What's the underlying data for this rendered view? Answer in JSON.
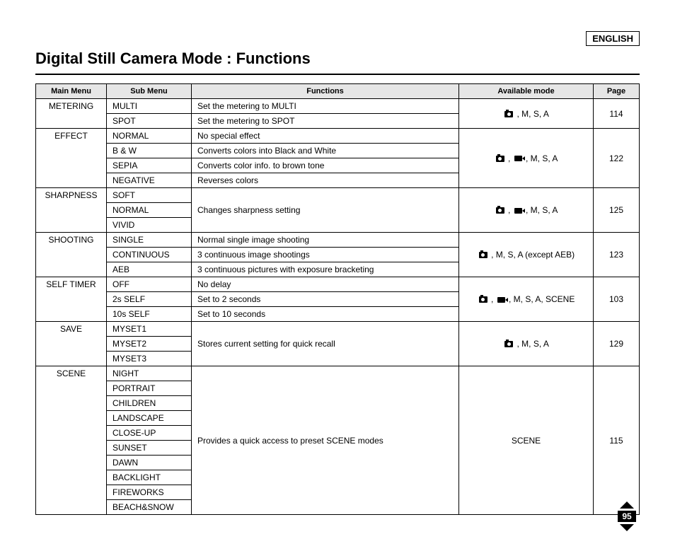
{
  "language_label": "ENGLISH",
  "page_title": "Digital Still Camera Mode : Functions",
  "page_number": "95",
  "headers": {
    "main": "Main Menu",
    "sub": "Sub Menu",
    "func": "Functions",
    "mode": "Available mode",
    "page": "Page"
  },
  "groups": [
    {
      "main": "METERING",
      "mode_icons": [
        "camera"
      ],
      "mode_text": " , M, S, A",
      "page": "114",
      "rows": [
        {
          "sub": "MULTI",
          "func": "Set the metering to MULTI"
        },
        {
          "sub": "SPOT",
          "func": "Set the metering to SPOT"
        }
      ]
    },
    {
      "main": "EFFECT",
      "mode_icons": [
        "camera",
        "video"
      ],
      "mode_text": " , M, S, A",
      "page": "122",
      "rows": [
        {
          "sub": "NORMAL",
          "func": "No special effect"
        },
        {
          "sub": "B & W",
          "func": "Converts colors into Black and White"
        },
        {
          "sub": "SEPIA",
          "func": "Converts color info. to brown tone"
        },
        {
          "sub": "NEGATIVE",
          "func": "Reverses colors"
        }
      ]
    },
    {
      "main": "SHARPNESS",
      "mode_icons": [
        "camera",
        "video"
      ],
      "mode_text": " , M, S, A",
      "page": "125",
      "merged_func": "Changes sharpness setting",
      "rows": [
        {
          "sub": "SOFT"
        },
        {
          "sub": "NORMAL"
        },
        {
          "sub": "VIVID"
        }
      ]
    },
    {
      "main": "SHOOTING",
      "mode_icons": [
        "camera"
      ],
      "mode_text": " , M, S, A (except AEB)",
      "page": "123",
      "rows": [
        {
          "sub": "SINGLE",
          "func": "Normal single image shooting"
        },
        {
          "sub": "CONTINUOUS",
          "func": "3 continuous image shootings"
        },
        {
          "sub": "AEB",
          "func": "3 continuous pictures with exposure bracketing"
        }
      ]
    },
    {
      "main": "SELF TIMER",
      "mode_icons": [
        "camera",
        "video"
      ],
      "mode_text": " , M, S, A, SCENE",
      "page": "103",
      "rows": [
        {
          "sub": "OFF",
          "func": "No delay"
        },
        {
          "sub": "2s SELF",
          "func": "Set to 2 seconds"
        },
        {
          "sub": "10s SELF",
          "func": "Set to 10 seconds"
        }
      ]
    },
    {
      "main": "SAVE",
      "mode_icons": [
        "camera"
      ],
      "mode_text": " , M, S, A",
      "page": "129",
      "merged_func": "Stores current setting for quick recall",
      "rows": [
        {
          "sub": "MYSET1"
        },
        {
          "sub": "MYSET2"
        },
        {
          "sub": "MYSET3"
        }
      ]
    },
    {
      "main": "SCENE",
      "mode_icons": [],
      "mode_text": "SCENE",
      "page": "115",
      "merged_func": "Provides a quick access to preset SCENE modes",
      "rows": [
        {
          "sub": "NIGHT"
        },
        {
          "sub": "PORTRAIT"
        },
        {
          "sub": "CHILDREN"
        },
        {
          "sub": "LANDSCAPE"
        },
        {
          "sub": "CLOSE-UP"
        },
        {
          "sub": "SUNSET"
        },
        {
          "sub": "DAWN"
        },
        {
          "sub": "BACKLIGHT"
        },
        {
          "sub": "FIREWORKS"
        },
        {
          "sub": "BEACH&SNOW"
        }
      ]
    }
  ]
}
